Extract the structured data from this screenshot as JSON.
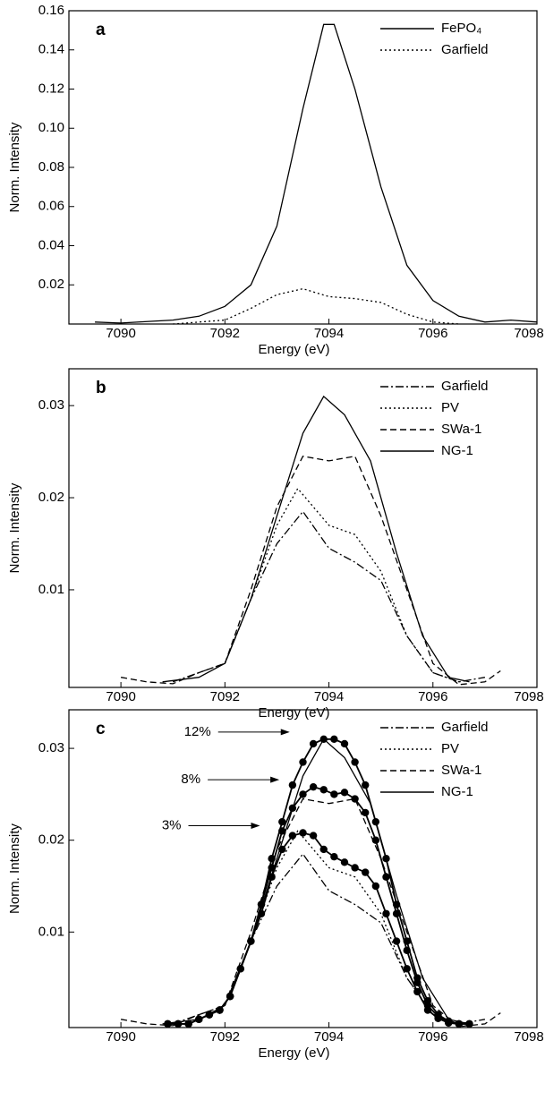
{
  "chart_data": [
    {
      "type": "line",
      "label": "a",
      "x_label": "Energy (eV)",
      "y_label": "Norm. Intensity",
      "xlim": [
        7089,
        7098
      ],
      "xticks": [
        7090,
        7092,
        7094,
        7096,
        7098
      ],
      "ylim": [
        0,
        0.16
      ],
      "yticks": [
        0.02,
        0.04,
        0.06,
        0.08,
        {
          "value": 0.1,
          "label": "0.10"
        },
        0.12,
        0.14,
        0.16
      ],
      "legend": "upper right",
      "series": [
        {
          "name": "FePO₄",
          "color": "#000000",
          "dash": "solid",
          "x": [
            7089.5,
            7090,
            7091,
            7091.5,
            7092,
            7092.5,
            7093,
            7093.5,
            7093.9,
            7094.1,
            7094.5,
            7095,
            7095.5,
            7096,
            7096.5,
            7097,
            7097.5,
            7098
          ],
          "values": [
            0.001,
            0.0005,
            0.002,
            0.004,
            0.009,
            0.02,
            0.05,
            0.11,
            0.153,
            0.153,
            0.12,
            0.07,
            0.03,
            0.012,
            0.004,
            0.001,
            0.002,
            0.001
          ]
        },
        {
          "name": "Garfield",
          "color": "#000000",
          "dash": "dotted",
          "x": [
            7091,
            7092,
            7092.5,
            7093,
            7093.5,
            7094,
            7094.5,
            7095,
            7095.5,
            7096,
            7096.5
          ],
          "values": [
            0,
            0.002,
            0.008,
            0.015,
            0.018,
            0.014,
            0.013,
            0.011,
            0.005,
            0.001,
            0
          ]
        }
      ]
    },
    {
      "type": "line",
      "label": "b",
      "x_label": "Energy (eV)",
      "y_label": "Norm. Intensity",
      "xlim": [
        7089,
        7098
      ],
      "xticks": [
        7090,
        7092,
        7094,
        7096,
        7098
      ],
      "ylim": [
        -0.0006,
        0.034
      ],
      "yticks": [
        0.01,
        0.02,
        0.03
      ],
      "legend": "upper right",
      "series": [
        {
          "name": "Garfield",
          "color": "#000000",
          "dash": "dashdot",
          "x": [
            7091,
            7092,
            7092.5,
            7093,
            7093.5,
            7094,
            7094.5,
            7095,
            7095.5,
            7096,
            7096.5,
            7097
          ],
          "values": [
            0,
            0.002,
            0.009,
            0.015,
            0.0185,
            0.0145,
            0.013,
            0.011,
            0.005,
            0.001,
            0,
            0.0005
          ]
        },
        {
          "name": "PV",
          "color": "#000000",
          "dash": "dotted",
          "x": [
            7092,
            7092.5,
            7093,
            7093.4,
            7094,
            7094.5,
            7095,
            7095.5,
            7096,
            7096.5
          ],
          "values": [
            0.002,
            0.009,
            0.017,
            0.021,
            0.017,
            0.016,
            0.012,
            0.005,
            0.001,
            0
          ]
        },
        {
          "name": "SWa-1",
          "color": "#000000",
          "dash": "dashed",
          "x": [
            7090,
            7090.5,
            7091,
            7091.5,
            7092,
            7092.5,
            7093,
            7093.5,
            7094,
            7094.5,
            7095,
            7095.5,
            7096,
            7096.5,
            7097,
            7097.3
          ],
          "values": [
            0.0005,
            0,
            -0.0002,
            0.001,
            0.002,
            0.01,
            0.019,
            0.0245,
            0.024,
            0.0245,
            0.018,
            0.01,
            0.002,
            -0.0003,
            0,
            0.0012
          ]
        },
        {
          "name": "NG-1",
          "color": "#000000",
          "dash": "solid",
          "x": [
            7090.8,
            7091.5,
            7092,
            7092.5,
            7093,
            7093.5,
            7093.9,
            7094.3,
            7094.8,
            7095.3,
            7095.8,
            7096.3,
            7096.7
          ],
          "values": [
            0,
            0.0005,
            0.002,
            0.009,
            0.018,
            0.027,
            0.031,
            0.029,
            0.024,
            0.014,
            0.005,
            0.0005,
            0
          ]
        }
      ]
    },
    {
      "type": "line",
      "label": "c",
      "x_label": "Energy (eV)",
      "y_label": "Norm. Intensity",
      "xlim": [
        7089,
        7098
      ],
      "xticks": [
        7090,
        7092,
        7094,
        7096,
        7098
      ],
      "ylim": [
        -0.0004,
        0.0342
      ],
      "yticks": [
        0.01,
        0.02,
        0.03
      ],
      "legend": "upper right",
      "series": [
        {
          "name": "Garfield",
          "color": "#000000",
          "dash": "dashdot",
          "x": [
            7091,
            7092,
            7092.5,
            7093,
            7093.5,
            7094,
            7094.5,
            7095,
            7095.5,
            7096,
            7096.5,
            7097
          ],
          "values": [
            0,
            0.002,
            0.009,
            0.015,
            0.0185,
            0.0145,
            0.013,
            0.011,
            0.005,
            0.001,
            0,
            0.0005
          ]
        },
        {
          "name": "PV",
          "color": "#000000",
          "dash": "dotted",
          "x": [
            7092,
            7092.5,
            7093,
            7093.4,
            7094,
            7094.5,
            7095,
            7095.5,
            7096,
            7096.5
          ],
          "values": [
            0.002,
            0.009,
            0.017,
            0.021,
            0.017,
            0.016,
            0.012,
            0.005,
            0.001,
            0
          ]
        },
        {
          "name": "SWa-1",
          "color": "#000000",
          "dash": "dashed",
          "x": [
            7090,
            7090.5,
            7091,
            7091.5,
            7092,
            7092.5,
            7093,
            7093.5,
            7094,
            7094.5,
            7095,
            7095.5,
            7096,
            7096.5,
            7097,
            7097.3
          ],
          "values": [
            0.0005,
            0,
            -0.0002,
            0.001,
            0.002,
            0.01,
            0.019,
            0.0245,
            0.024,
            0.0245,
            0.018,
            0.01,
            0.002,
            -0.0003,
            0,
            0.0012
          ]
        },
        {
          "name": "NG-1",
          "color": "#000000",
          "dash": "solid",
          "x": [
            7090.8,
            7091.5,
            7092,
            7092.5,
            7093,
            7093.5,
            7093.9,
            7094.3,
            7094.8,
            7095.3,
            7095.8,
            7096.3,
            7096.7
          ],
          "values": [
            0,
            0.0005,
            0.002,
            0.009,
            0.018,
            0.027,
            0.031,
            0.029,
            0.024,
            0.014,
            0.005,
            0.0005,
            0
          ]
        },
        {
          "name": "12%",
          "color": "#000000",
          "dash": "solid",
          "marker": "circle",
          "x": [
            7090.9,
            7091.1,
            7091.3,
            7091.5,
            7091.7,
            7091.9,
            7092.1,
            7092.3,
            7092.5,
            7092.7,
            7092.9,
            7093.1,
            7093.3,
            7093.5,
            7093.7,
            7093.9,
            7094.1,
            7094.3,
            7094.5,
            7094.7,
            7094.9,
            7095.1,
            7095.3,
            7095.5,
            7095.7,
            7095.9,
            7096.1,
            7096.3,
            7096.5,
            7096.7
          ],
          "values": [
            0,
            0,
            0,
            0.0005,
            0.001,
            0.0015,
            0.003,
            0.006,
            0.009,
            0.013,
            0.018,
            0.022,
            0.026,
            0.0285,
            0.0305,
            0.031,
            0.031,
            0.0305,
            0.0285,
            0.026,
            0.022,
            0.018,
            0.013,
            0.009,
            0.005,
            0.0025,
            0.001,
            0.0003,
            0,
            0
          ]
        },
        {
          "name": "8%",
          "color": "#000000",
          "dash": "solid",
          "marker": "circle",
          "x": [
            7090.9,
            7091.1,
            7091.3,
            7091.5,
            7091.7,
            7091.9,
            7092.1,
            7092.3,
            7092.5,
            7092.7,
            7092.9,
            7093.1,
            7093.3,
            7093.5,
            7093.7,
            7093.9,
            7094.1,
            7094.3,
            7094.5,
            7094.7,
            7094.9,
            7095.1,
            7095.3,
            7095.5,
            7095.7,
            7095.9,
            7096.1,
            7096.3,
            7096.5,
            7096.7
          ],
          "values": [
            0,
            0,
            0,
            0.0005,
            0.001,
            0.0015,
            0.003,
            0.006,
            0.009,
            0.013,
            0.017,
            0.021,
            0.0235,
            0.025,
            0.0258,
            0.0255,
            0.025,
            0.0252,
            0.0245,
            0.023,
            0.02,
            0.016,
            0.012,
            0.008,
            0.0045,
            0.002,
            0.0008,
            0.0002,
            0,
            0
          ]
        },
        {
          "name": "3%",
          "color": "#000000",
          "dash": "solid",
          "marker": "circle",
          "x": [
            7090.9,
            7091.1,
            7091.3,
            7091.5,
            7091.7,
            7091.9,
            7092.1,
            7092.3,
            7092.5,
            7092.7,
            7092.9,
            7093.1,
            7093.3,
            7093.5,
            7093.7,
            7093.9,
            7094.1,
            7094.3,
            7094.5,
            7094.7,
            7094.9,
            7095.1,
            7095.3,
            7095.5,
            7095.7,
            7095.9,
            7096.1,
            7096.3,
            7096.5,
            7096.7
          ],
          "values": [
            0,
            0,
            0,
            0.0005,
            0.001,
            0.0015,
            0.003,
            0.006,
            0.009,
            0.012,
            0.016,
            0.019,
            0.0205,
            0.0208,
            0.0205,
            0.019,
            0.0182,
            0.0176,
            0.017,
            0.0165,
            0.015,
            0.012,
            0.009,
            0.006,
            0.0035,
            0.0015,
            0.0006,
            0.0001,
            0,
            0
          ]
        }
      ]
    }
  ]
}
